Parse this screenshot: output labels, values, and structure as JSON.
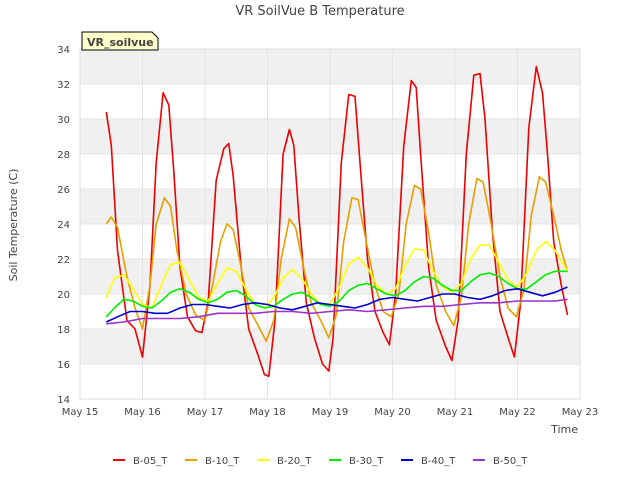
{
  "colors": {
    "plot_band": "#f0f0f0",
    "plot_bg": "#ffffff",
    "badge_fill": "#ffffcc",
    "badge_text": "#8b0000"
  },
  "chart_data": {
    "type": "line",
    "title": "VR SoilVue B Temperature",
    "xlabel": "Time",
    "ylabel": "Soil Temperature (C)",
    "badge": "VR_soilvue",
    "xlim": [
      15.0,
      23.0
    ],
    "ylim": [
      14,
      34
    ],
    "x_ticks": [
      {
        "value": 15,
        "label": "May 15"
      },
      {
        "value": 16,
        "label": "May 16"
      },
      {
        "value": 17,
        "label": "May 17"
      },
      {
        "value": 18,
        "label": "May 18"
      },
      {
        "value": 19,
        "label": "May 19"
      },
      {
        "value": 20,
        "label": "May 20"
      },
      {
        "value": 21,
        "label": "May 21"
      },
      {
        "value": 22,
        "label": "May 22"
      },
      {
        "value": 23,
        "label": "May 23"
      }
    ],
    "y_ticks": [
      14,
      16,
      18,
      20,
      22,
      24,
      26,
      28,
      30,
      32,
      34
    ],
    "grid": true,
    "legend_position": "bottom",
    "series": [
      {
        "name": "B-05_T",
        "color": "#ee0000",
        "x": [
          15.42,
          15.5,
          15.6,
          15.75,
          15.88,
          16.0,
          16.12,
          16.22,
          16.33,
          16.42,
          16.5,
          16.6,
          16.72,
          16.85,
          16.95,
          17.05,
          17.18,
          17.3,
          17.38,
          17.45,
          17.58,
          17.7,
          17.85,
          17.95,
          18.02,
          18.12,
          18.25,
          18.35,
          18.42,
          18.5,
          18.62,
          18.75,
          18.88,
          18.98,
          19.05,
          19.18,
          19.3,
          19.4,
          19.48,
          19.6,
          19.72,
          19.85,
          19.95,
          20.05,
          20.18,
          20.3,
          20.38,
          20.45,
          20.58,
          20.7,
          20.85,
          20.95,
          21.05,
          21.18,
          21.3,
          21.4,
          21.48,
          21.6,
          21.72,
          21.85,
          21.95,
          22.05,
          22.18,
          22.3,
          22.4,
          22.48,
          22.58,
          22.7,
          22.8
        ],
        "y": [
          30.4,
          28.5,
          22.5,
          18.5,
          18.0,
          16.4,
          20.5,
          27.5,
          31.5,
          30.8,
          27.0,
          21.5,
          18.7,
          17.9,
          17.8,
          19.5,
          26.5,
          28.3,
          28.6,
          26.8,
          21.5,
          18.0,
          16.5,
          15.4,
          15.3,
          18.5,
          28.0,
          29.4,
          28.5,
          24.5,
          19.5,
          17.5,
          16.0,
          15.6,
          17.5,
          27.5,
          31.4,
          31.3,
          27.5,
          22.0,
          19.0,
          17.8,
          17.1,
          20.0,
          28.5,
          32.2,
          31.8,
          28.0,
          21.5,
          18.5,
          17.0,
          16.2,
          18.5,
          28.0,
          32.5,
          32.6,
          30.0,
          23.5,
          19.0,
          17.5,
          16.4,
          19.5,
          29.5,
          33.0,
          31.5,
          28.0,
          23.0,
          20.5,
          18.8
        ]
      },
      {
        "name": "B-10_T",
        "color": "#e69f00",
        "x": [
          15.42,
          15.5,
          15.6,
          15.75,
          15.88,
          16.0,
          16.12,
          16.22,
          16.35,
          16.45,
          16.55,
          16.7,
          16.85,
          17.0,
          17.12,
          17.25,
          17.35,
          17.45,
          17.58,
          17.7,
          17.85,
          17.98,
          18.1,
          18.22,
          18.35,
          18.45,
          18.58,
          18.7,
          18.85,
          18.98,
          19.1,
          19.22,
          19.35,
          19.45,
          19.58,
          19.72,
          19.85,
          19.98,
          20.1,
          20.22,
          20.35,
          20.45,
          20.58,
          20.7,
          20.85,
          20.98,
          21.1,
          21.22,
          21.35,
          21.45,
          21.58,
          21.72,
          21.85,
          21.98,
          22.1,
          22.22,
          22.35,
          22.45,
          22.58,
          22.7,
          22.8
        ],
        "y": [
          24.0,
          24.4,
          23.8,
          21.0,
          19.2,
          18.0,
          20.5,
          24.0,
          25.5,
          25.0,
          22.5,
          20.0,
          18.8,
          18.5,
          20.5,
          23.0,
          24.0,
          23.7,
          21.5,
          19.2,
          18.2,
          17.3,
          18.5,
          22.0,
          24.3,
          23.8,
          21.5,
          19.5,
          18.5,
          17.5,
          18.8,
          23.0,
          25.5,
          25.4,
          23.0,
          20.5,
          19.0,
          18.7,
          20.0,
          24.0,
          26.2,
          26.0,
          23.5,
          20.5,
          19.0,
          18.2,
          19.8,
          24.0,
          26.6,
          26.4,
          24.0,
          21.0,
          19.2,
          18.7,
          20.2,
          24.5,
          26.7,
          26.4,
          24.5,
          22.5,
          21.3
        ]
      },
      {
        "name": "B-20_T",
        "color": "#ffff00",
        "x": [
          15.42,
          15.55,
          15.7,
          15.85,
          16.0,
          16.15,
          16.3,
          16.45,
          16.6,
          16.75,
          16.9,
          17.05,
          17.2,
          17.35,
          17.5,
          17.65,
          17.8,
          17.95,
          18.1,
          18.25,
          18.4,
          18.55,
          18.7,
          18.85,
          19.0,
          19.15,
          19.3,
          19.45,
          19.6,
          19.75,
          19.9,
          20.05,
          20.2,
          20.35,
          20.5,
          20.65,
          20.8,
          20.95,
          21.1,
          21.25,
          21.4,
          21.55,
          21.7,
          21.85,
          22.0,
          22.15,
          22.3,
          22.45,
          22.6,
          22.7,
          22.8
        ],
        "y": [
          19.8,
          20.9,
          21.1,
          20.3,
          19.4,
          19.2,
          20.5,
          21.7,
          21.8,
          20.8,
          19.8,
          19.6,
          20.6,
          21.5,
          21.3,
          20.3,
          19.4,
          19.2,
          19.8,
          20.9,
          21.4,
          20.9,
          20.0,
          19.4,
          19.4,
          20.4,
          21.7,
          22.1,
          21.5,
          20.5,
          20.0,
          20.3,
          21.6,
          22.6,
          22.5,
          21.3,
          20.4,
          20.1,
          20.6,
          22.0,
          22.8,
          22.8,
          21.8,
          20.8,
          20.4,
          21.2,
          22.5,
          23.0,
          22.5,
          21.9,
          21.3
        ]
      },
      {
        "name": "B-30_T",
        "color": "#00ee00",
        "x": [
          15.42,
          15.55,
          15.7,
          15.85,
          16.0,
          16.15,
          16.3,
          16.45,
          16.6,
          16.75,
          16.9,
          17.05,
          17.2,
          17.35,
          17.5,
          17.65,
          17.8,
          17.95,
          18.1,
          18.25,
          18.4,
          18.55,
          18.7,
          18.85,
          19.0,
          19.15,
          19.3,
          19.45,
          19.6,
          19.75,
          19.9,
          20.05,
          20.2,
          20.35,
          20.5,
          20.65,
          20.8,
          20.95,
          21.1,
          21.25,
          21.4,
          21.55,
          21.7,
          21.85,
          22.0,
          22.15,
          22.3,
          22.45,
          22.6,
          22.7,
          22.8
        ],
        "y": [
          18.7,
          19.2,
          19.7,
          19.6,
          19.3,
          19.2,
          19.6,
          20.1,
          20.3,
          20.1,
          19.7,
          19.5,
          19.7,
          20.1,
          20.2,
          19.9,
          19.4,
          19.2,
          19.3,
          19.7,
          20.0,
          20.1,
          19.8,
          19.4,
          19.3,
          19.6,
          20.2,
          20.5,
          20.6,
          20.3,
          20.0,
          19.9,
          20.2,
          20.7,
          21.0,
          20.9,
          20.5,
          20.2,
          20.2,
          20.7,
          21.1,
          21.2,
          21.0,
          20.6,
          20.3,
          20.3,
          20.7,
          21.1,
          21.3,
          21.3,
          21.3
        ]
      },
      {
        "name": "B-40_T",
        "color": "#0000cc",
        "x": [
          15.42,
          15.6,
          15.8,
          16.0,
          16.2,
          16.4,
          16.6,
          16.8,
          17.0,
          17.2,
          17.4,
          17.6,
          17.8,
          18.0,
          18.2,
          18.4,
          18.6,
          18.8,
          19.0,
          19.2,
          19.4,
          19.6,
          19.8,
          20.0,
          20.2,
          20.4,
          20.6,
          20.8,
          21.0,
          21.2,
          21.4,
          21.6,
          21.8,
          22.0,
          22.2,
          22.4,
          22.6,
          22.8
        ],
        "y": [
          18.4,
          18.7,
          19.0,
          19.0,
          18.9,
          18.9,
          19.2,
          19.4,
          19.4,
          19.3,
          19.2,
          19.4,
          19.5,
          19.4,
          19.2,
          19.1,
          19.3,
          19.5,
          19.4,
          19.3,
          19.2,
          19.4,
          19.7,
          19.8,
          19.7,
          19.6,
          19.8,
          20.0,
          20.0,
          19.8,
          19.7,
          19.9,
          20.2,
          20.3,
          20.1,
          19.9,
          20.1,
          20.4
        ]
      },
      {
        "name": "B-50_T",
        "color": "#9933cc",
        "x": [
          15.42,
          15.7,
          16.0,
          16.3,
          16.6,
          16.9,
          17.2,
          17.5,
          17.8,
          18.1,
          18.4,
          18.7,
          19.0,
          19.3,
          19.6,
          19.9,
          20.2,
          20.5,
          20.8,
          21.1,
          21.4,
          21.7,
          22.0,
          22.3,
          22.6,
          22.8
        ],
        "y": [
          18.3,
          18.4,
          18.6,
          18.6,
          18.6,
          18.7,
          18.9,
          18.9,
          18.9,
          19.0,
          19.0,
          18.9,
          19.0,
          19.1,
          19.0,
          19.1,
          19.2,
          19.3,
          19.3,
          19.4,
          19.5,
          19.5,
          19.6,
          19.6,
          19.6,
          19.7
        ]
      }
    ]
  }
}
